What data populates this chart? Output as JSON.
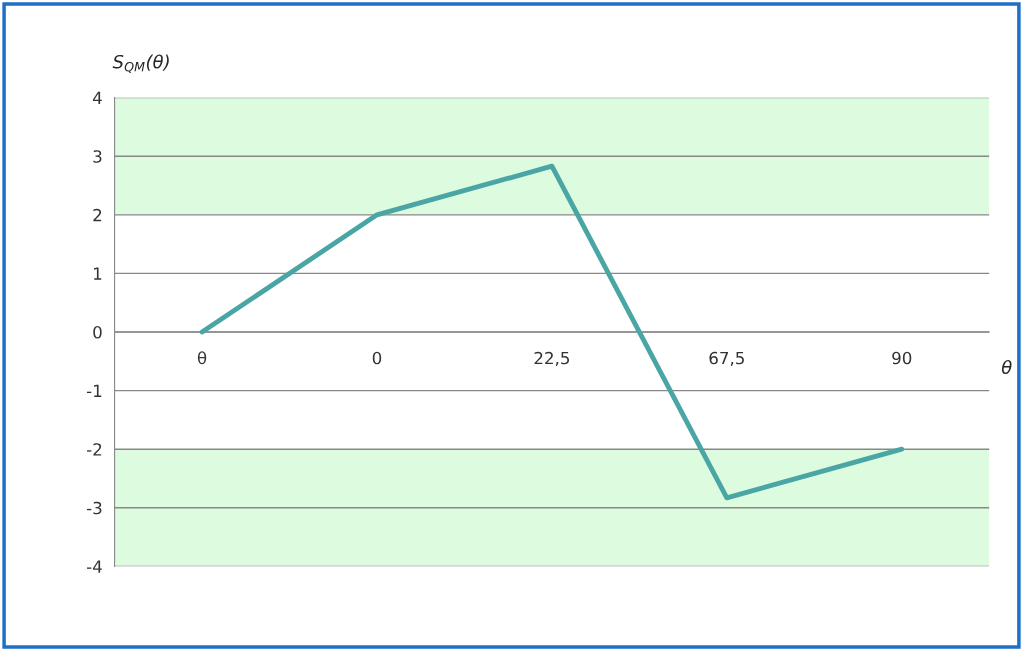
{
  "chart_data": {
    "type": "line",
    "categories": [
      "θ",
      "0",
      "22,5",
      "67,5",
      "90"
    ],
    "series": [
      {
        "color": "#4aa5a5",
        "values": [
          0,
          2,
          2.83,
          -2.83,
          -2
        ]
      }
    ],
    "xlabel": "θ",
    "ylabel": "S$_{QM}$(θ)",
    "ylim": [
      -4,
      4
    ],
    "yticks": [
      -4,
      -3,
      -2,
      -1,
      0,
      1,
      2,
      3,
      4
    ],
    "bands": [
      {
        "axis": "y",
        "from": 2,
        "to": 4,
        "color": "#dcfbdf"
      },
      {
        "axis": "y",
        "from": -4,
        "to": -2,
        "color": "#dcfbdf"
      }
    ],
    "grid": "y",
    "legend": false,
    "marker": "none",
    "line_style": "solid"
  }
}
